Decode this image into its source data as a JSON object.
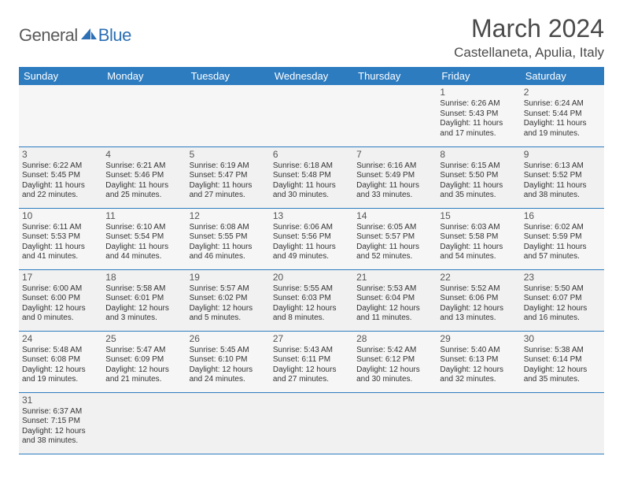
{
  "brand": {
    "general": "General",
    "blue": "Blue"
  },
  "title": "March 2024",
  "location": "Castellaneta, Apulia, Italy",
  "colors": {
    "header_bg": "#2d7cc0",
    "header_text": "#ffffff",
    "brand_gray": "#5a5a5a",
    "brand_blue": "#2d6fb5",
    "cell_border": "#2d7cc0",
    "cell_bg": "#f3f3f3",
    "text": "#333333",
    "title_text": "#4a4a4a"
  },
  "columns": [
    "Sunday",
    "Monday",
    "Tuesday",
    "Wednesday",
    "Thursday",
    "Friday",
    "Saturday"
  ],
  "weeks": [
    [
      null,
      null,
      null,
      null,
      null,
      {
        "d": "1",
        "sr": "Sunrise: 6:26 AM",
        "ss": "Sunset: 5:43 PM",
        "dl1": "Daylight: 11 hours",
        "dl2": "and 17 minutes."
      },
      {
        "d": "2",
        "sr": "Sunrise: 6:24 AM",
        "ss": "Sunset: 5:44 PM",
        "dl1": "Daylight: 11 hours",
        "dl2": "and 19 minutes."
      }
    ],
    [
      {
        "d": "3",
        "sr": "Sunrise: 6:22 AM",
        "ss": "Sunset: 5:45 PM",
        "dl1": "Daylight: 11 hours",
        "dl2": "and 22 minutes."
      },
      {
        "d": "4",
        "sr": "Sunrise: 6:21 AM",
        "ss": "Sunset: 5:46 PM",
        "dl1": "Daylight: 11 hours",
        "dl2": "and 25 minutes."
      },
      {
        "d": "5",
        "sr": "Sunrise: 6:19 AM",
        "ss": "Sunset: 5:47 PM",
        "dl1": "Daylight: 11 hours",
        "dl2": "and 27 minutes."
      },
      {
        "d": "6",
        "sr": "Sunrise: 6:18 AM",
        "ss": "Sunset: 5:48 PM",
        "dl1": "Daylight: 11 hours",
        "dl2": "and 30 minutes."
      },
      {
        "d": "7",
        "sr": "Sunrise: 6:16 AM",
        "ss": "Sunset: 5:49 PM",
        "dl1": "Daylight: 11 hours",
        "dl2": "and 33 minutes."
      },
      {
        "d": "8",
        "sr": "Sunrise: 6:15 AM",
        "ss": "Sunset: 5:50 PM",
        "dl1": "Daylight: 11 hours",
        "dl2": "and 35 minutes."
      },
      {
        "d": "9",
        "sr": "Sunrise: 6:13 AM",
        "ss": "Sunset: 5:52 PM",
        "dl1": "Daylight: 11 hours",
        "dl2": "and 38 minutes."
      }
    ],
    [
      {
        "d": "10",
        "sr": "Sunrise: 6:11 AM",
        "ss": "Sunset: 5:53 PM",
        "dl1": "Daylight: 11 hours",
        "dl2": "and 41 minutes."
      },
      {
        "d": "11",
        "sr": "Sunrise: 6:10 AM",
        "ss": "Sunset: 5:54 PM",
        "dl1": "Daylight: 11 hours",
        "dl2": "and 44 minutes."
      },
      {
        "d": "12",
        "sr": "Sunrise: 6:08 AM",
        "ss": "Sunset: 5:55 PM",
        "dl1": "Daylight: 11 hours",
        "dl2": "and 46 minutes."
      },
      {
        "d": "13",
        "sr": "Sunrise: 6:06 AM",
        "ss": "Sunset: 5:56 PM",
        "dl1": "Daylight: 11 hours",
        "dl2": "and 49 minutes."
      },
      {
        "d": "14",
        "sr": "Sunrise: 6:05 AM",
        "ss": "Sunset: 5:57 PM",
        "dl1": "Daylight: 11 hours",
        "dl2": "and 52 minutes."
      },
      {
        "d": "15",
        "sr": "Sunrise: 6:03 AM",
        "ss": "Sunset: 5:58 PM",
        "dl1": "Daylight: 11 hours",
        "dl2": "and 54 minutes."
      },
      {
        "d": "16",
        "sr": "Sunrise: 6:02 AM",
        "ss": "Sunset: 5:59 PM",
        "dl1": "Daylight: 11 hours",
        "dl2": "and 57 minutes."
      }
    ],
    [
      {
        "d": "17",
        "sr": "Sunrise: 6:00 AM",
        "ss": "Sunset: 6:00 PM",
        "dl1": "Daylight: 12 hours",
        "dl2": "and 0 minutes."
      },
      {
        "d": "18",
        "sr": "Sunrise: 5:58 AM",
        "ss": "Sunset: 6:01 PM",
        "dl1": "Daylight: 12 hours",
        "dl2": "and 3 minutes."
      },
      {
        "d": "19",
        "sr": "Sunrise: 5:57 AM",
        "ss": "Sunset: 6:02 PM",
        "dl1": "Daylight: 12 hours",
        "dl2": "and 5 minutes."
      },
      {
        "d": "20",
        "sr": "Sunrise: 5:55 AM",
        "ss": "Sunset: 6:03 PM",
        "dl1": "Daylight: 12 hours",
        "dl2": "and 8 minutes."
      },
      {
        "d": "21",
        "sr": "Sunrise: 5:53 AM",
        "ss": "Sunset: 6:04 PM",
        "dl1": "Daylight: 12 hours",
        "dl2": "and 11 minutes."
      },
      {
        "d": "22",
        "sr": "Sunrise: 5:52 AM",
        "ss": "Sunset: 6:06 PM",
        "dl1": "Daylight: 12 hours",
        "dl2": "and 13 minutes."
      },
      {
        "d": "23",
        "sr": "Sunrise: 5:50 AM",
        "ss": "Sunset: 6:07 PM",
        "dl1": "Daylight: 12 hours",
        "dl2": "and 16 minutes."
      }
    ],
    [
      {
        "d": "24",
        "sr": "Sunrise: 5:48 AM",
        "ss": "Sunset: 6:08 PM",
        "dl1": "Daylight: 12 hours",
        "dl2": "and 19 minutes."
      },
      {
        "d": "25",
        "sr": "Sunrise: 5:47 AM",
        "ss": "Sunset: 6:09 PM",
        "dl1": "Daylight: 12 hours",
        "dl2": "and 21 minutes."
      },
      {
        "d": "26",
        "sr": "Sunrise: 5:45 AM",
        "ss": "Sunset: 6:10 PM",
        "dl1": "Daylight: 12 hours",
        "dl2": "and 24 minutes."
      },
      {
        "d": "27",
        "sr": "Sunrise: 5:43 AM",
        "ss": "Sunset: 6:11 PM",
        "dl1": "Daylight: 12 hours",
        "dl2": "and 27 minutes."
      },
      {
        "d": "28",
        "sr": "Sunrise: 5:42 AM",
        "ss": "Sunset: 6:12 PM",
        "dl1": "Daylight: 12 hours",
        "dl2": "and 30 minutes."
      },
      {
        "d": "29",
        "sr": "Sunrise: 5:40 AM",
        "ss": "Sunset: 6:13 PM",
        "dl1": "Daylight: 12 hours",
        "dl2": "and 32 minutes."
      },
      {
        "d": "30",
        "sr": "Sunrise: 5:38 AM",
        "ss": "Sunset: 6:14 PM",
        "dl1": "Daylight: 12 hours",
        "dl2": "and 35 minutes."
      }
    ],
    [
      {
        "d": "31",
        "sr": "Sunrise: 6:37 AM",
        "ss": "Sunset: 7:15 PM",
        "dl1": "Daylight: 12 hours",
        "dl2": "and 38 minutes."
      },
      null,
      null,
      null,
      null,
      null,
      null
    ]
  ]
}
